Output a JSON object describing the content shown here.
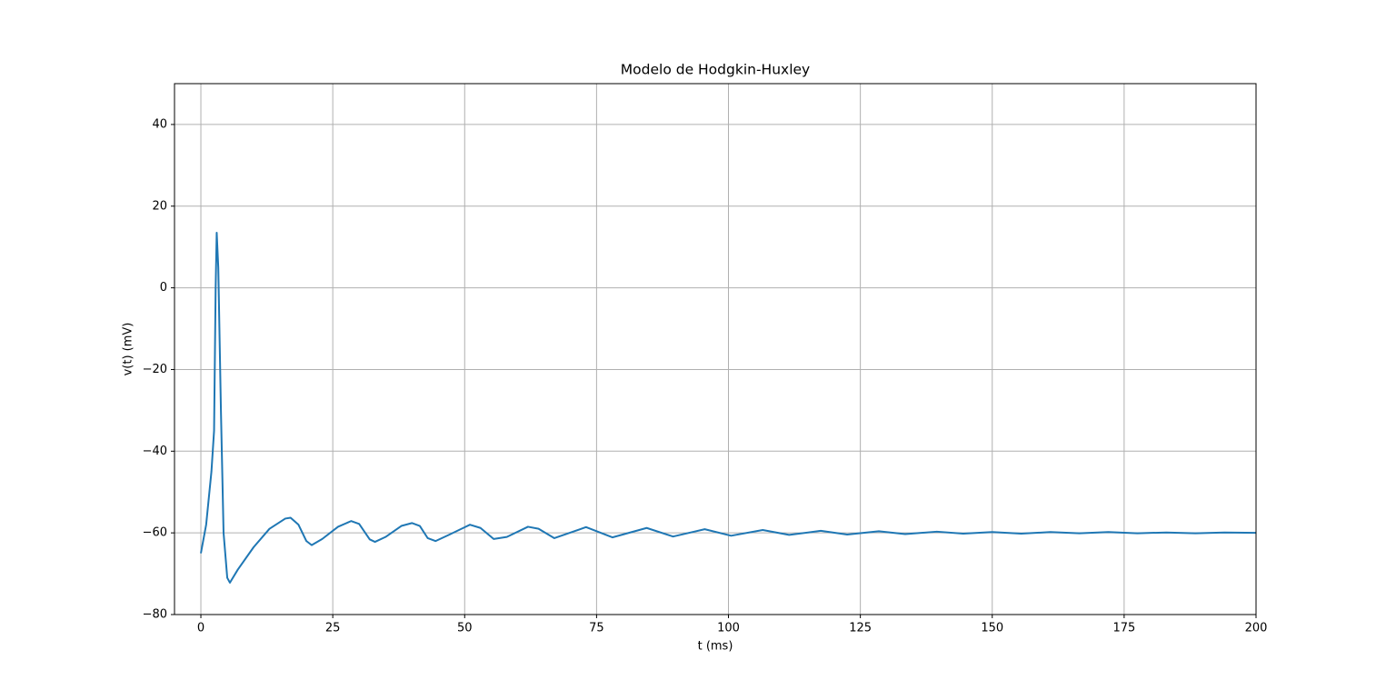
{
  "chart_data": {
    "type": "line",
    "title": "Modelo de Hodgkin-Huxley",
    "x_label": "t (ms)",
    "y_label": "v(t) (mV)",
    "x": [
      0,
      1,
      2,
      2.5,
      2.8,
      3,
      3.3,
      3.8,
      4.3,
      5,
      5.5,
      7,
      10,
      13,
      16,
      17,
      18.5,
      20,
      21,
      23,
      26,
      28.5,
      30,
      32,
      33,
      35,
      38,
      40,
      41.5,
      43,
      44.5,
      47,
      51,
      53,
      55.5,
      58,
      62,
      64,
      67,
      73,
      78,
      84.5,
      89.5,
      95.5,
      100.5,
      106.5,
      111.5,
      117.5,
      122.5,
      128.5,
      133.5,
      139.5,
      144.5,
      150,
      155.5,
      161,
      166.5,
      172,
      177.5,
      183,
      188.5,
      194,
      200
    ],
    "series": [
      {
        "name": "v(t)",
        "color": "#1f77b4",
        "values": [
          -65,
          -58,
          -45,
          -35,
          0,
          13.5,
          5,
          -30,
          -60,
          -71,
          -72.2,
          -69,
          -63.5,
          -59,
          -56.5,
          -56.3,
          -58,
          -62,
          -63,
          -61.5,
          -58.5,
          -57.1,
          -57.8,
          -61.6,
          -62.2,
          -61,
          -58.3,
          -57.6,
          -58.3,
          -61.3,
          -62,
          -60.5,
          -58,
          -58.8,
          -61.5,
          -61,
          -58.5,
          -59,
          -61.3,
          -58.6,
          -61.1,
          -58.8,
          -60.9,
          -59.1,
          -60.7,
          -59.3,
          -60.5,
          -59.5,
          -60.4,
          -59.6,
          -60.3,
          -59.7,
          -60.2,
          -59.8,
          -60.2,
          -59.8,
          -60.1,
          -59.8,
          -60.1,
          -59.9,
          -60.1,
          -59.9,
          -60
        ]
      }
    ],
    "xlim": [
      -5,
      200
    ],
    "ylim": [
      -80,
      50
    ],
    "xticks": [
      0,
      25,
      50,
      75,
      100,
      125,
      150,
      175,
      200
    ],
    "yticks": [
      {
        "value": -80,
        "label": "−80"
      },
      {
        "value": -60,
        "label": "−60"
      },
      {
        "value": -40,
        "label": "−40"
      },
      {
        "value": -20,
        "label": "−20"
      },
      0,
      20,
      40
    ],
    "grid": true
  }
}
